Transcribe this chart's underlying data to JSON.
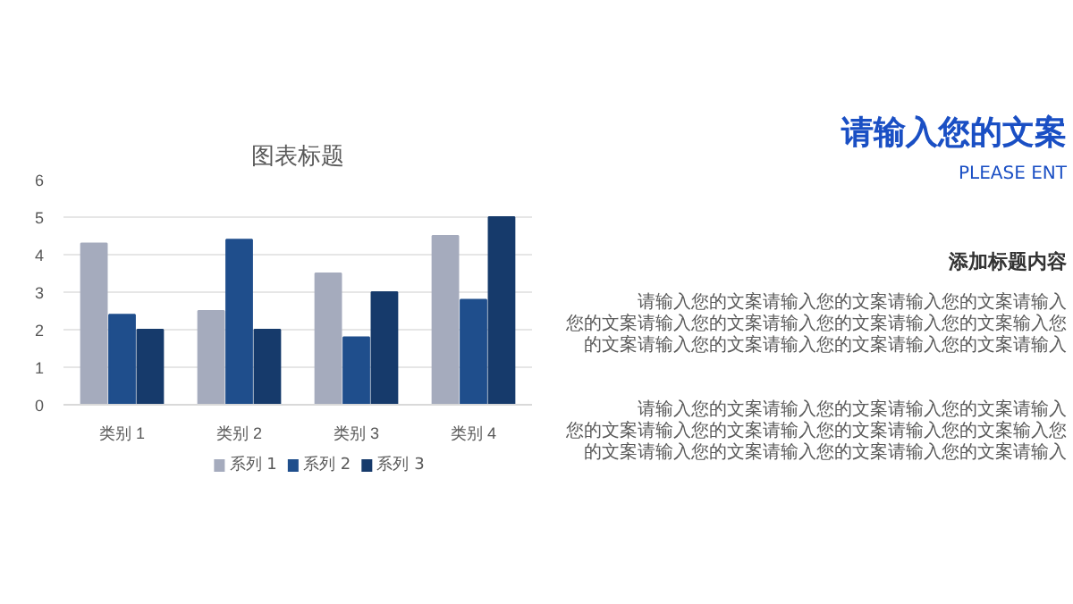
{
  "chart_data": {
    "type": "bar",
    "title": "图表标题",
    "categories": [
      "类别 1",
      "类别 2",
      "类别 3",
      "类别 4"
    ],
    "series": [
      {
        "name": "系列 1",
        "color": "#a5abbd",
        "values": [
          4.3,
          2.5,
          3.5,
          4.5
        ]
      },
      {
        "name": "系列 2",
        "color": "#1f4e8c",
        "values": [
          2.4,
          4.4,
          1.8,
          2.8
        ]
      },
      {
        "name": "系列 3",
        "color": "#163a6b",
        "values": [
          2.0,
          2.0,
          3.0,
          5.0
        ]
      }
    ],
    "ylim": [
      0,
      6
    ],
    "yticks": [
      0,
      1,
      2,
      3,
      4,
      5,
      6
    ],
    "grid": "y",
    "legend": "bottom",
    "annotations": [
      "请输入您的文案",
      "PLEASE ENT",
      "添加标题内容",
      "请输入您的文案请输入您的文案请输入您的文案请输入",
      "您的文案请输入您的文案请输入您的文案请输入您的文案输入您",
      "的文案请输入您的文案请输入您的文案请输入您的文案请输入",
      "请输入您的文案请输入您的文案请输入您的文案请输入",
      "您的文案请输入您的文案请输入您的文案请输入您的文案输入您",
      "的文案请输入您的文案请输入您的文案请输入您的文案请输入"
    ]
  }
}
